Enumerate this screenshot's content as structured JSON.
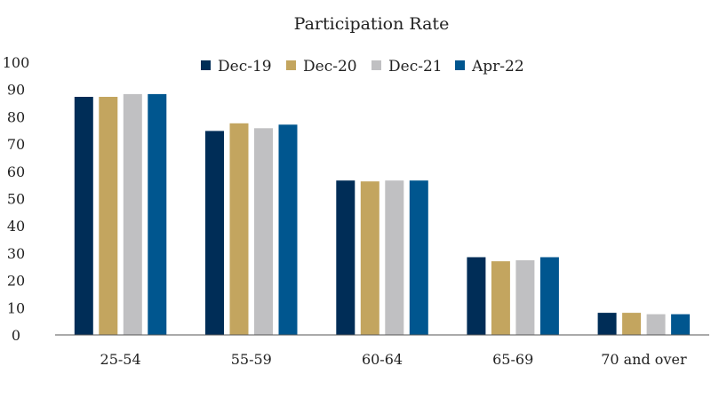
{
  "chart_data": {
    "type": "bar",
    "title": "Participation Rate",
    "xlabel": "",
    "ylabel": "",
    "ylim": [
      0,
      100
    ],
    "yticks": [
      0,
      10,
      20,
      30,
      40,
      50,
      60,
      70,
      80,
      90,
      100
    ],
    "grid": false,
    "legend_position": "top",
    "categories": [
      "25-54",
      "55-59",
      "60-64",
      "65-69",
      "70 and over"
    ],
    "series": [
      {
        "name": "Dec-19",
        "color": "#002d57",
        "values": [
          87.3,
          74.8,
          56.6,
          28.5,
          8.1
        ]
      },
      {
        "name": "Dec-20",
        "color": "#c3a55f",
        "values": [
          87.3,
          77.6,
          56.3,
          27.0,
          8.1
        ]
      },
      {
        "name": "Dec-21",
        "color": "#c0c0c2",
        "values": [
          88.3,
          75.8,
          56.6,
          27.4,
          7.6
        ]
      },
      {
        "name": "Apr-22",
        "color": "#00568f",
        "values": [
          88.3,
          77.1,
          56.6,
          28.5,
          7.6
        ]
      }
    ]
  }
}
